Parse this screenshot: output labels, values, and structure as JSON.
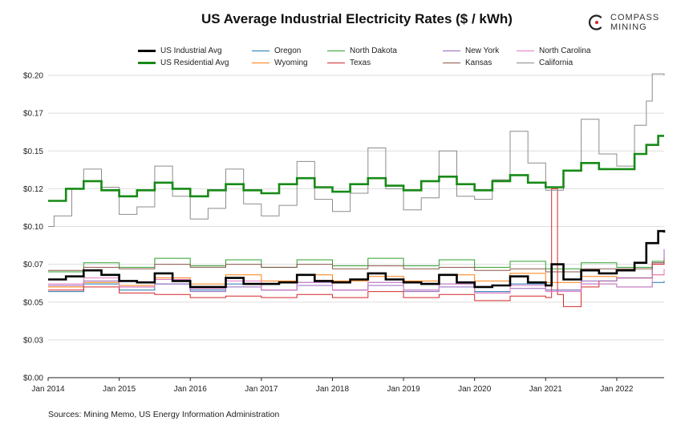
{
  "page": {
    "title": "US Average Industrial Electricity Rates ($ / kWh)",
    "source": "Sources: Mining Memo, US Energy Information Administration",
    "logo_line1": "COMPASS",
    "logo_line2": "MINING"
  },
  "chart_data": {
    "type": "line",
    "title": "US Average Industrial Electricity Rates ($ / kWh)",
    "xlabel": "",
    "ylabel": "",
    "x_range": [
      "2014-01",
      "2022-09"
    ],
    "ylim": [
      0,
      0.2
    ],
    "y_ticks": [
      0.0,
      0.025,
      0.05,
      0.075,
      0.1,
      0.125,
      0.15,
      0.175,
      0.2
    ],
    "y_tick_labels": [
      "$0.00",
      "$0.03",
      "$0.05",
      "$0.07",
      "$0.10",
      "$0.12",
      "$0.15",
      "$0.17",
      "$0.20"
    ],
    "x_tick_labels": [
      "Jan 2014",
      "Jan 2015",
      "Jan 2016",
      "Jan 2017",
      "Jan 2018",
      "Jan 2019",
      "Jan 2020",
      "Jan 2021",
      "Jan 2022"
    ],
    "grid": "horizontal",
    "legend_position": "top",
    "step_lines": true,
    "series": [
      {
        "name": "US Industrial Avg",
        "color": "#000000",
        "width": 2.6,
        "points": [
          [
            "2014-01",
            0.065
          ],
          [
            "2014-04",
            0.067
          ],
          [
            "2014-07",
            0.071
          ],
          [
            "2014-10",
            0.068
          ],
          [
            "2015-01",
            0.064
          ],
          [
            "2015-04",
            0.063
          ],
          [
            "2015-07",
            0.069
          ],
          [
            "2015-10",
            0.064
          ],
          [
            "2016-01",
            0.06
          ],
          [
            "2016-04",
            0.06
          ],
          [
            "2016-07",
            0.066
          ],
          [
            "2016-10",
            0.062
          ],
          [
            "2017-01",
            0.062
          ],
          [
            "2017-04",
            0.063
          ],
          [
            "2017-07",
            0.068
          ],
          [
            "2017-10",
            0.064
          ],
          [
            "2018-01",
            0.063
          ],
          [
            "2018-04",
            0.065
          ],
          [
            "2018-07",
            0.069
          ],
          [
            "2018-10",
            0.065
          ],
          [
            "2019-01",
            0.063
          ],
          [
            "2019-04",
            0.062
          ],
          [
            "2019-07",
            0.068
          ],
          [
            "2019-10",
            0.063
          ],
          [
            "2020-01",
            0.06
          ],
          [
            "2020-04",
            0.061
          ],
          [
            "2020-07",
            0.067
          ],
          [
            "2020-10",
            0.063
          ],
          [
            "2021-01",
            0.061
          ],
          [
            "2021-02",
            0.075
          ],
          [
            "2021-04",
            0.065
          ],
          [
            "2021-07",
            0.071
          ],
          [
            "2021-10",
            0.069
          ],
          [
            "2022-01",
            0.071
          ],
          [
            "2022-04",
            0.076
          ],
          [
            "2022-06",
            0.089
          ],
          [
            "2022-08",
            0.097
          ],
          [
            "2022-09",
            0.096
          ]
        ]
      },
      {
        "name": "US Residential Avg",
        "color": "#178a17",
        "width": 2.6,
        "points": [
          [
            "2014-01",
            0.117
          ],
          [
            "2014-04",
            0.125
          ],
          [
            "2014-07",
            0.13
          ],
          [
            "2014-10",
            0.124
          ],
          [
            "2015-01",
            0.12
          ],
          [
            "2015-04",
            0.124
          ],
          [
            "2015-07",
            0.129
          ],
          [
            "2015-10",
            0.125
          ],
          [
            "2016-01",
            0.12
          ],
          [
            "2016-04",
            0.124
          ],
          [
            "2016-07",
            0.128
          ],
          [
            "2016-10",
            0.124
          ],
          [
            "2017-01",
            0.122
          ],
          [
            "2017-04",
            0.128
          ],
          [
            "2017-07",
            0.132
          ],
          [
            "2017-10",
            0.126
          ],
          [
            "2018-01",
            0.123
          ],
          [
            "2018-04",
            0.128
          ],
          [
            "2018-07",
            0.132
          ],
          [
            "2018-10",
            0.127
          ],
          [
            "2019-01",
            0.124
          ],
          [
            "2019-04",
            0.13
          ],
          [
            "2019-07",
            0.133
          ],
          [
            "2019-10",
            0.128
          ],
          [
            "2020-01",
            0.124
          ],
          [
            "2020-04",
            0.13
          ],
          [
            "2020-07",
            0.134
          ],
          [
            "2020-10",
            0.129
          ],
          [
            "2021-01",
            0.126
          ],
          [
            "2021-04",
            0.137
          ],
          [
            "2021-07",
            0.142
          ],
          [
            "2021-10",
            0.138
          ],
          [
            "2022-01",
            0.138
          ],
          [
            "2022-04",
            0.148
          ],
          [
            "2022-06",
            0.154
          ],
          [
            "2022-08",
            0.16
          ],
          [
            "2022-09",
            0.16
          ]
        ]
      },
      {
        "name": "Oregon",
        "color": "#1f77b4",
        "width": 1,
        "points": [
          [
            "2014-01",
            0.057
          ],
          [
            "2014-07",
            0.062
          ],
          [
            "2015-01",
            0.058
          ],
          [
            "2015-07",
            0.062
          ],
          [
            "2016-01",
            0.058
          ],
          [
            "2016-07",
            0.062
          ],
          [
            "2017-01",
            0.058
          ],
          [
            "2017-07",
            0.063
          ],
          [
            "2018-01",
            0.058
          ],
          [
            "2018-07",
            0.063
          ],
          [
            "2019-01",
            0.058
          ],
          [
            "2019-07",
            0.062
          ],
          [
            "2020-01",
            0.057
          ],
          [
            "2020-07",
            0.062
          ],
          [
            "2021-01",
            0.058
          ],
          [
            "2021-07",
            0.062
          ],
          [
            "2022-01",
            0.06
          ],
          [
            "2022-07",
            0.063
          ],
          [
            "2022-09",
            0.064
          ]
        ]
      },
      {
        "name": "Wyoming",
        "color": "#ff7f0e",
        "width": 1,
        "points": [
          [
            "2014-01",
            0.06
          ],
          [
            "2014-07",
            0.063
          ],
          [
            "2015-01",
            0.061
          ],
          [
            "2015-07",
            0.066
          ],
          [
            "2016-01",
            0.062
          ],
          [
            "2016-07",
            0.068
          ],
          [
            "2017-01",
            0.064
          ],
          [
            "2017-07",
            0.068
          ],
          [
            "2018-01",
            0.064
          ],
          [
            "2018-07",
            0.067
          ],
          [
            "2019-01",
            0.064
          ],
          [
            "2019-07",
            0.068
          ],
          [
            "2020-01",
            0.064
          ],
          [
            "2020-07",
            0.069
          ],
          [
            "2021-01",
            0.063
          ],
          [
            "2021-07",
            0.067
          ],
          [
            "2022-01",
            0.066
          ],
          [
            "2022-07",
            0.068
          ],
          [
            "2022-09",
            0.07
          ]
        ]
      },
      {
        "name": "North Dakota",
        "color": "#2ca02c",
        "width": 1,
        "points": [
          [
            "2014-01",
            0.07
          ],
          [
            "2014-07",
            0.076
          ],
          [
            "2015-01",
            0.073
          ],
          [
            "2015-07",
            0.079
          ],
          [
            "2016-01",
            0.074
          ],
          [
            "2016-07",
            0.078
          ],
          [
            "2017-01",
            0.073
          ],
          [
            "2017-07",
            0.078
          ],
          [
            "2018-01",
            0.074
          ],
          [
            "2018-07",
            0.079
          ],
          [
            "2019-01",
            0.074
          ],
          [
            "2019-07",
            0.078
          ],
          [
            "2020-01",
            0.073
          ],
          [
            "2020-07",
            0.077
          ],
          [
            "2021-01",
            0.072
          ],
          [
            "2021-07",
            0.076
          ],
          [
            "2022-01",
            0.073
          ],
          [
            "2022-07",
            0.077
          ],
          [
            "2022-09",
            0.08
          ]
        ]
      },
      {
        "name": "Texas",
        "color": "#d62728",
        "width": 1,
        "points": [
          [
            "2014-01",
            0.058
          ],
          [
            "2014-07",
            0.06
          ],
          [
            "2015-01",
            0.056
          ],
          [
            "2015-07",
            0.055
          ],
          [
            "2016-01",
            0.053
          ],
          [
            "2016-07",
            0.054
          ],
          [
            "2017-01",
            0.053
          ],
          [
            "2017-07",
            0.055
          ],
          [
            "2018-01",
            0.053
          ],
          [
            "2018-07",
            0.057
          ],
          [
            "2019-01",
            0.053
          ],
          [
            "2019-07",
            0.055
          ],
          [
            "2020-01",
            0.051
          ],
          [
            "2020-07",
            0.054
          ],
          [
            "2021-01",
            0.053
          ],
          [
            "2021-02",
            0.125
          ],
          [
            "2021-03",
            0.055
          ],
          [
            "2021-04",
            0.047
          ],
          [
            "2021-07",
            0.06
          ],
          [
            "2021-10",
            0.064
          ],
          [
            "2022-01",
            0.066
          ],
          [
            "2022-07",
            0.075
          ],
          [
            "2022-09",
            0.078
          ]
        ]
      },
      {
        "name": "New York",
        "color": "#9467bd",
        "width": 1,
        "points": [
          [
            "2014-01",
            0.061
          ],
          [
            "2014-07",
            0.064
          ],
          [
            "2015-01",
            0.06
          ],
          [
            "2015-07",
            0.062
          ],
          [
            "2016-01",
            0.057
          ],
          [
            "2016-07",
            0.06
          ],
          [
            "2017-01",
            0.058
          ],
          [
            "2017-07",
            0.061
          ],
          [
            "2018-01",
            0.058
          ],
          [
            "2018-07",
            0.061
          ],
          [
            "2019-01",
            0.057
          ],
          [
            "2019-07",
            0.06
          ],
          [
            "2020-01",
            0.056
          ],
          [
            "2020-07",
            0.059
          ],
          [
            "2021-01",
            0.058
          ],
          [
            "2021-07",
            0.064
          ],
          [
            "2022-01",
            0.066
          ],
          [
            "2022-07",
            0.076
          ],
          [
            "2022-09",
            0.085
          ]
        ]
      },
      {
        "name": "Kansas",
        "color": "#8c564b",
        "width": 1,
        "points": [
          [
            "2014-01",
            0.071
          ],
          [
            "2014-07",
            0.073
          ],
          [
            "2015-01",
            0.072
          ],
          [
            "2015-07",
            0.075
          ],
          [
            "2016-01",
            0.073
          ],
          [
            "2016-07",
            0.075
          ],
          [
            "2017-01",
            0.073
          ],
          [
            "2017-07",
            0.075
          ],
          [
            "2018-01",
            0.072
          ],
          [
            "2018-07",
            0.074
          ],
          [
            "2019-01",
            0.072
          ],
          [
            "2019-07",
            0.073
          ],
          [
            "2020-01",
            0.071
          ],
          [
            "2020-07",
            0.072
          ],
          [
            "2021-01",
            0.07
          ],
          [
            "2021-07",
            0.072
          ],
          [
            "2022-01",
            0.072
          ],
          [
            "2022-07",
            0.076
          ],
          [
            "2022-09",
            0.079
          ]
        ]
      },
      {
        "name": "North Carolina",
        "color": "#e377c2",
        "width": 1,
        "points": [
          [
            "2014-01",
            0.062
          ],
          [
            "2014-07",
            0.066
          ],
          [
            "2015-01",
            0.06
          ],
          [
            "2015-07",
            0.065
          ],
          [
            "2016-01",
            0.059
          ],
          [
            "2016-07",
            0.064
          ],
          [
            "2017-01",
            0.058
          ],
          [
            "2017-07",
            0.063
          ],
          [
            "2018-01",
            0.058
          ],
          [
            "2018-07",
            0.063
          ],
          [
            "2019-01",
            0.058
          ],
          [
            "2019-07",
            0.062
          ],
          [
            "2020-01",
            0.056
          ],
          [
            "2020-07",
            0.061
          ],
          [
            "2021-01",
            0.057
          ],
          [
            "2021-07",
            0.062
          ],
          [
            "2022-01",
            0.06
          ],
          [
            "2022-07",
            0.068
          ],
          [
            "2022-09",
            0.072
          ]
        ]
      },
      {
        "name": "California",
        "color": "#8c8c8c",
        "width": 1,
        "points": [
          [
            "2014-01",
            0.1
          ],
          [
            "2014-02",
            0.107
          ],
          [
            "2014-05",
            0.125
          ],
          [
            "2014-07",
            0.138
          ],
          [
            "2014-10",
            0.126
          ],
          [
            "2015-01",
            0.108
          ],
          [
            "2015-04",
            0.113
          ],
          [
            "2015-07",
            0.14
          ],
          [
            "2015-10",
            0.12
          ],
          [
            "2016-01",
            0.105
          ],
          [
            "2016-04",
            0.112
          ],
          [
            "2016-07",
            0.138
          ],
          [
            "2016-10",
            0.115
          ],
          [
            "2017-01",
            0.107
          ],
          [
            "2017-04",
            0.114
          ],
          [
            "2017-07",
            0.143
          ],
          [
            "2017-10",
            0.118
          ],
          [
            "2018-01",
            0.11
          ],
          [
            "2018-04",
            0.122
          ],
          [
            "2018-07",
            0.152
          ],
          [
            "2018-10",
            0.125
          ],
          [
            "2019-01",
            0.111
          ],
          [
            "2019-04",
            0.119
          ],
          [
            "2019-07",
            0.15
          ],
          [
            "2019-10",
            0.12
          ],
          [
            "2020-01",
            0.118
          ],
          [
            "2020-04",
            0.131
          ],
          [
            "2020-07",
            0.163
          ],
          [
            "2020-10",
            0.142
          ],
          [
            "2021-01",
            0.124
          ],
          [
            "2021-04",
            0.137
          ],
          [
            "2021-07",
            0.171
          ],
          [
            "2021-10",
            0.148
          ],
          [
            "2022-01",
            0.14
          ],
          [
            "2022-04",
            0.167
          ],
          [
            "2022-06",
            0.183
          ],
          [
            "2022-07",
            0.201
          ],
          [
            "2022-09",
            0.2
          ]
        ]
      }
    ]
  }
}
